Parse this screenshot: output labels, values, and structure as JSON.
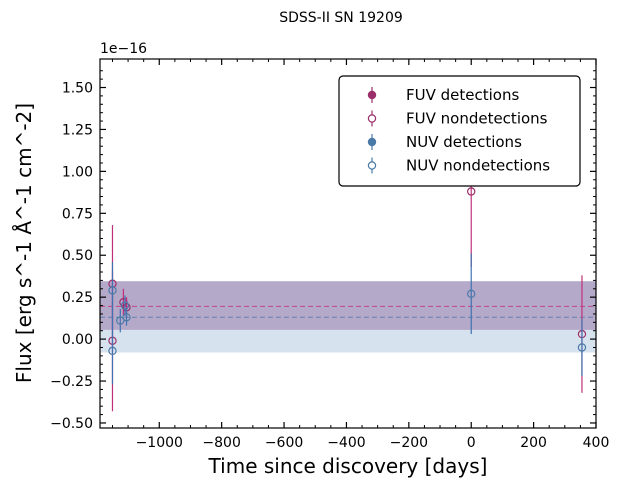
{
  "chart_data": {
    "type": "scatter",
    "title": "SDSS-II SN 19209",
    "xlabel": "Time since discovery [days]",
    "ylabel": "Flux [erg s^-1 Å^-1 cm^-2]",
    "y_offset_label": "1e−16",
    "xlim": [
      -1190,
      400
    ],
    "ylim": [
      -0.53,
      1.67
    ],
    "x_ticks": [
      -1000,
      -800,
      -600,
      -400,
      -200,
      0,
      200,
      400
    ],
    "x_tick_labels": [
      "−1000",
      "−800",
      "−600",
      "−400",
      "−200",
      "0",
      "200",
      "400"
    ],
    "y_ticks": [
      -0.5,
      -0.25,
      0.0,
      0.25,
      0.5,
      0.75,
      1.0,
      1.25,
      1.5
    ],
    "y_tick_labels": [
      "−0.50",
      "−0.25",
      "0.00",
      "0.25",
      "0.50",
      "0.75",
      "1.00",
      "1.25",
      "1.50"
    ],
    "grid": false,
    "legend_position": "top-right",
    "colors": {
      "fuv": "#9b2f6a",
      "fuv_err": "#c0307a",
      "nuv": "#4a7aa8",
      "nuv_err": "#3f72b0"
    },
    "bands": [
      {
        "series": "FUV",
        "center": 0.195,
        "low": 0.055,
        "high": 0.345
      },
      {
        "series": "NUV",
        "center": 0.13,
        "low": -0.08,
        "high": 0.345
      }
    ],
    "series": [
      {
        "name": "FUV detections",
        "filled": true,
        "points": []
      },
      {
        "name": "FUV nondetections",
        "filled": false,
        "points": [
          {
            "x": -1150,
            "y": 0.33,
            "err": 0.35
          },
          {
            "x": -1150,
            "y": -0.01,
            "err": 0.42
          },
          {
            "x": -1115,
            "y": 0.22,
            "err": 0.08
          },
          {
            "x": -1105,
            "y": 0.19,
            "err": 0.06
          },
          {
            "x": 0,
            "y": 0.88,
            "err": 0.45
          },
          {
            "x": 355,
            "y": 0.03,
            "err": 0.35
          }
        ]
      },
      {
        "name": "NUV detections",
        "filled": true,
        "points": []
      },
      {
        "name": "NUV nondetections",
        "filled": false,
        "points": [
          {
            "x": -1150,
            "y": 0.29,
            "err": 0.17
          },
          {
            "x": -1150,
            "y": -0.07,
            "err": 0.2
          },
          {
            "x": -1125,
            "y": 0.11,
            "err": 0.07
          },
          {
            "x": -1110,
            "y": 0.2,
            "err": 0.06
          },
          {
            "x": -1105,
            "y": 0.13,
            "err": 0.05
          },
          {
            "x": 0,
            "y": 0.27,
            "err": 0.24
          },
          {
            "x": 355,
            "y": -0.05,
            "err": 0.17
          }
        ]
      }
    ]
  }
}
